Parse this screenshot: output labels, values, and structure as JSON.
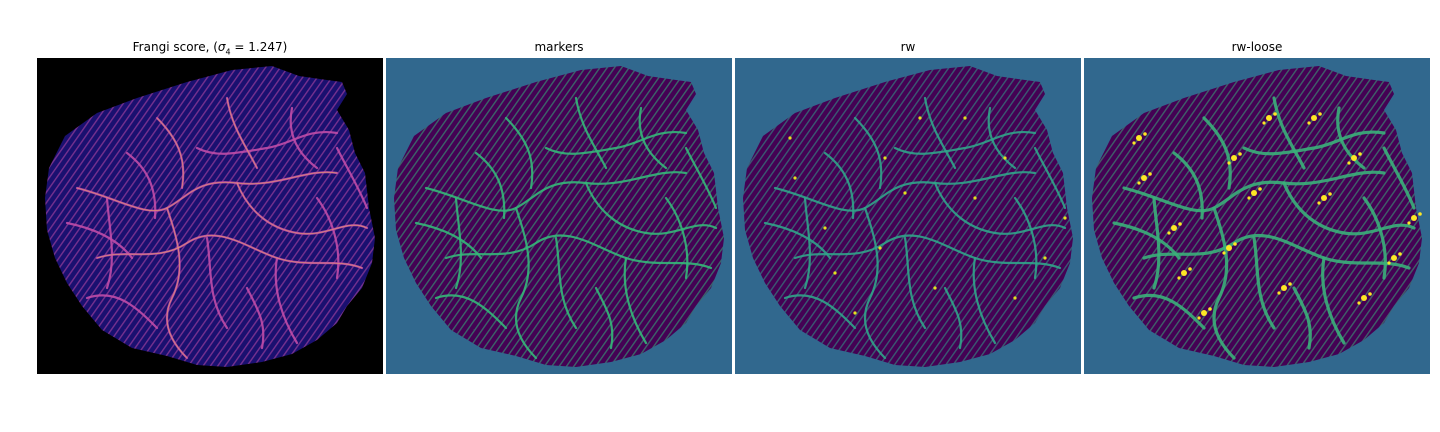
{
  "panels": [
    {
      "title_prefix": "Frangi score, (",
      "title_sigma": "σ",
      "title_sub": "4",
      "title_suffix": " = 1.247)",
      "background_color": "#000000",
      "organ_color": "#1a1070",
      "vessel_color": "#c04da8",
      "highlight_color": "#f2b85a"
    },
    {
      "title": "markers",
      "background_color": "#31688e",
      "organ_color": "#440154",
      "vessel_color": "#35b779",
      "highlight_color": "#35b779"
    },
    {
      "title": "rw",
      "background_color": "#31688e",
      "organ_color": "#440154",
      "vessel_color": "#31a48a",
      "highlight_color": "#e6e21f"
    },
    {
      "title": "rw-loose",
      "background_color": "#31688e",
      "organ_color": "#440154",
      "vessel_color": "#3bb07a",
      "highlight_color": "#fde725"
    }
  ]
}
